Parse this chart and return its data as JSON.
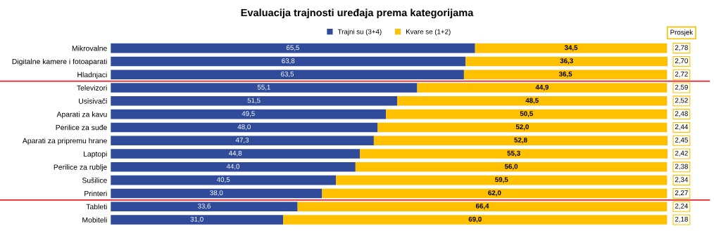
{
  "chart_data": {
    "type": "bar",
    "orientation": "horizontal",
    "stacked": true,
    "title": "Evaluacija trajnosti uređaja prema kategorijama",
    "legend": "top",
    "categories": [
      "Mikrovalne",
      "Digitalne kamere i fotoaparati",
      "Hladnjaci",
      "Televizori",
      "Usisivači",
      "Aparati za kavu",
      "Perilice za suđe",
      "Aparati za pripremu hrane",
      "Laptopi",
      "Perilice za rublje",
      "Sušilice",
      "Printeri",
      "Tableti",
      "Mobiteli"
    ],
    "series": [
      {
        "name": "Trajni su (3+4)",
        "color": "#2f4b9a",
        "values": [
          65.5,
          63.8,
          63.5,
          55.1,
          51.5,
          49.5,
          48.0,
          47.3,
          44.8,
          44.0,
          40.5,
          38.0,
          33.6,
          31.0
        ],
        "value_labels": [
          "65,5",
          "63,8",
          "63,5",
          "55,1",
          "51,5",
          "49,5",
          "48,0",
          "47,3",
          "44,8",
          "44,0",
          "40,5",
          "38,0",
          "33,6",
          "31,0"
        ]
      },
      {
        "name": "Kvare se (1+2)",
        "color": "#ffc000",
        "values": [
          34.5,
          36.3,
          36.5,
          44.9,
          48.5,
          50.5,
          52.0,
          52.8,
          55.3,
          56.0,
          59.5,
          62.0,
          66.4,
          69.0
        ],
        "value_labels": [
          "34,5",
          "36,3",
          "36,5",
          "44,9",
          "48,5",
          "50,5",
          "52,0",
          "52,8",
          "55,3",
          "56,0",
          "59,5",
          "62,0",
          "66,4",
          "69,0"
        ]
      }
    ],
    "annotations": [
      "Prosjek",
      "2,78",
      "2,70",
      "2,72",
      "2,59",
      "2,52",
      "2,48",
      "2,44",
      "2,45",
      "2,42",
      "2,38",
      "2,34",
      "2,27",
      "2,24",
      "2,18"
    ]
  }
}
